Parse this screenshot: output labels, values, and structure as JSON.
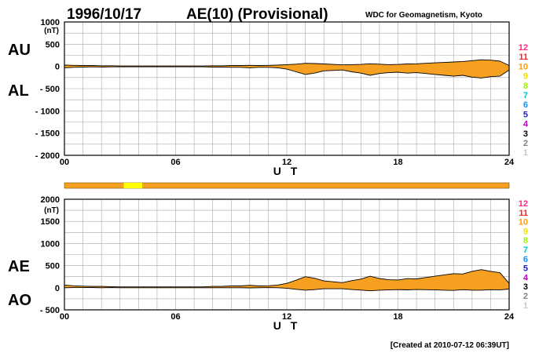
{
  "header": {
    "date": "1996/10/17",
    "title": "AE(10) (Provisional)",
    "source": "WDC for Geomagnetism, Kyoto"
  },
  "footer": {
    "created": "[Created at 2010-07-12 06:39UT]"
  },
  "colors": {
    "fill": "#f5a020",
    "outline": "#000000",
    "grid": "#a8a8a8",
    "bar_main": "#f5a020",
    "bar_highlight": "#ffff00"
  },
  "station_legend": [
    {
      "label": "12",
      "color": "#ff2a7f"
    },
    {
      "label": "11",
      "color": "#ff2020"
    },
    {
      "label": "10",
      "color": "#ff9a00"
    },
    {
      "label": "9",
      "color": "#f0e000"
    },
    {
      "label": "8",
      "color": "#a0f000"
    },
    {
      "label": "7",
      "color": "#00c8c8"
    },
    {
      "label": "6",
      "color": "#1090ff"
    },
    {
      "label": "5",
      "color": "#2020c0"
    },
    {
      "label": "4",
      "color": "#c000c0"
    },
    {
      "label": "3",
      "color": "#000000"
    },
    {
      "label": "2",
      "color": "#808080"
    },
    {
      "label": "1",
      "color": "#c8c8c8"
    }
  ],
  "station_bar": {
    "label": "",
    "highlight_hours": [
      3.2,
      4.2
    ]
  },
  "chart_data": [
    {
      "type": "area",
      "id": "au_al",
      "series_labels": {
        "upper": "AU",
        "lower": "AL"
      },
      "ylabel": "(nT)",
      "xlabel": "U T",
      "xlim": [
        0,
        24
      ],
      "ylim": [
        -2000,
        1000
      ],
      "xticks": [
        0,
        6,
        12,
        18,
        24
      ],
      "xtick_labels": [
        "00",
        "06",
        "12",
        "18",
        "24"
      ],
      "yticks": [
        1000,
        500,
        0,
        -500,
        -1000,
        -1500,
        -2000
      ],
      "ytick_labels": [
        "1000",
        "500",
        "0",
        "- 500",
        "- 1000",
        "- 1500",
        "- 2000"
      ],
      "grid": true,
      "series": [
        {
          "name": "AU",
          "x": [
            0,
            0.5,
            1,
            1.5,
            2,
            2.5,
            3,
            3.5,
            4,
            4.5,
            5,
            5.5,
            6,
            6.5,
            7,
            7.5,
            8,
            8.5,
            9,
            9.5,
            10,
            10.5,
            11,
            11.5,
            12,
            12.5,
            13,
            13.5,
            14,
            14.5,
            15,
            15.5,
            16,
            16.5,
            17,
            17.5,
            18,
            18.5,
            19,
            19.5,
            20,
            20.5,
            21,
            21.5,
            22,
            22.5,
            23,
            23.5,
            24
          ],
          "values": [
            30,
            25,
            20,
            20,
            15,
            15,
            10,
            10,
            10,
            10,
            10,
            10,
            10,
            10,
            10,
            10,
            15,
            15,
            20,
            20,
            25,
            20,
            25,
            30,
            40,
            50,
            70,
            65,
            55,
            45,
            35,
            40,
            45,
            60,
            50,
            40,
            45,
            55,
            60,
            70,
            80,
            90,
            100,
            110,
            130,
            150,
            140,
            120,
            20
          ]
        },
        {
          "name": "AL",
          "x": [
            0,
            0.5,
            1,
            1.5,
            2,
            2.5,
            3,
            3.5,
            4,
            4.5,
            5,
            5.5,
            6,
            6.5,
            7,
            7.5,
            8,
            8.5,
            9,
            9.5,
            10,
            10.5,
            11,
            11.5,
            12,
            12.5,
            13,
            13.5,
            14,
            14.5,
            15,
            15.5,
            16,
            16.5,
            17,
            17.5,
            18,
            18.5,
            19,
            19.5,
            20,
            20.5,
            21,
            21.5,
            22,
            22.5,
            23,
            23.5,
            24
          ],
          "values": [
            -30,
            -20,
            -15,
            -10,
            -15,
            -10,
            -10,
            -10,
            -10,
            -10,
            -10,
            -10,
            -10,
            -10,
            -10,
            -10,
            -15,
            -15,
            -20,
            -20,
            -30,
            -20,
            -20,
            -30,
            -60,
            -120,
            -180,
            -150,
            -100,
            -90,
            -80,
            -120,
            -150,
            -200,
            -160,
            -140,
            -130,
            -150,
            -140,
            -160,
            -180,
            -200,
            -220,
            -200,
            -240,
            -260,
            -230,
            -220,
            -80
          ]
        }
      ]
    },
    {
      "type": "area",
      "id": "ae_ao",
      "series_labels": {
        "upper": "AE",
        "lower": "AO"
      },
      "ylabel": "(nT)",
      "xlabel": "U T",
      "xlim": [
        0,
        24
      ],
      "ylim": [
        -500,
        2000
      ],
      "xticks": [
        0,
        6,
        12,
        18,
        24
      ],
      "xtick_labels": [
        "00",
        "06",
        "12",
        "18",
        "24"
      ],
      "yticks": [
        2000,
        1500,
        1000,
        500,
        0,
        -500
      ],
      "ytick_labels": [
        "2000",
        "1500",
        "1000",
        "500",
        "0",
        "- 500"
      ],
      "grid": true,
      "series": [
        {
          "name": "AE",
          "x": [
            0,
            0.5,
            1,
            1.5,
            2,
            2.5,
            3,
            3.5,
            4,
            4.5,
            5,
            5.5,
            6,
            6.5,
            7,
            7.5,
            8,
            8.5,
            9,
            9.5,
            10,
            10.5,
            11,
            11.5,
            12,
            12.5,
            13,
            13.5,
            14,
            14.5,
            15,
            15.5,
            16,
            16.5,
            17,
            17.5,
            18,
            18.5,
            19,
            19.5,
            20,
            20.5,
            21,
            21.5,
            22,
            22.5,
            23,
            23.5,
            24
          ],
          "values": [
            60,
            45,
            35,
            30,
            30,
            25,
            20,
            20,
            20,
            20,
            20,
            20,
            20,
            20,
            20,
            20,
            30,
            30,
            40,
            40,
            55,
            40,
            45,
            60,
            100,
            170,
            250,
            215,
            155,
            135,
            115,
            160,
            195,
            260,
            210,
            180,
            175,
            205,
            200,
            230,
            260,
            290,
            320,
            310,
            370,
            410,
            370,
            340,
            100
          ]
        },
        {
          "name": "AO",
          "x": [
            0,
            0.5,
            1,
            1.5,
            2,
            2.5,
            3,
            3.5,
            4,
            4.5,
            5,
            5.5,
            6,
            6.5,
            7,
            7.5,
            8,
            8.5,
            9,
            9.5,
            10,
            10.5,
            11,
            11.5,
            12,
            12.5,
            13,
            13.5,
            14,
            14.5,
            15,
            15.5,
            16,
            16.5,
            17,
            17.5,
            18,
            18.5,
            19,
            19.5,
            20,
            20.5,
            21,
            21.5,
            22,
            22.5,
            23,
            23.5,
            24
          ],
          "values": [
            0,
            3,
            3,
            5,
            0,
            3,
            0,
            0,
            0,
            0,
            0,
            0,
            0,
            0,
            0,
            0,
            0,
            0,
            0,
            0,
            -3,
            0,
            3,
            0,
            -10,
            -35,
            -55,
            -43,
            -23,
            -23,
            -23,
            -40,
            -53,
            -70,
            -55,
            -50,
            -43,
            -48,
            -40,
            -45,
            -50,
            -55,
            -60,
            -45,
            -55,
            -55,
            -45,
            -50,
            -30
          ]
        }
      ]
    }
  ]
}
